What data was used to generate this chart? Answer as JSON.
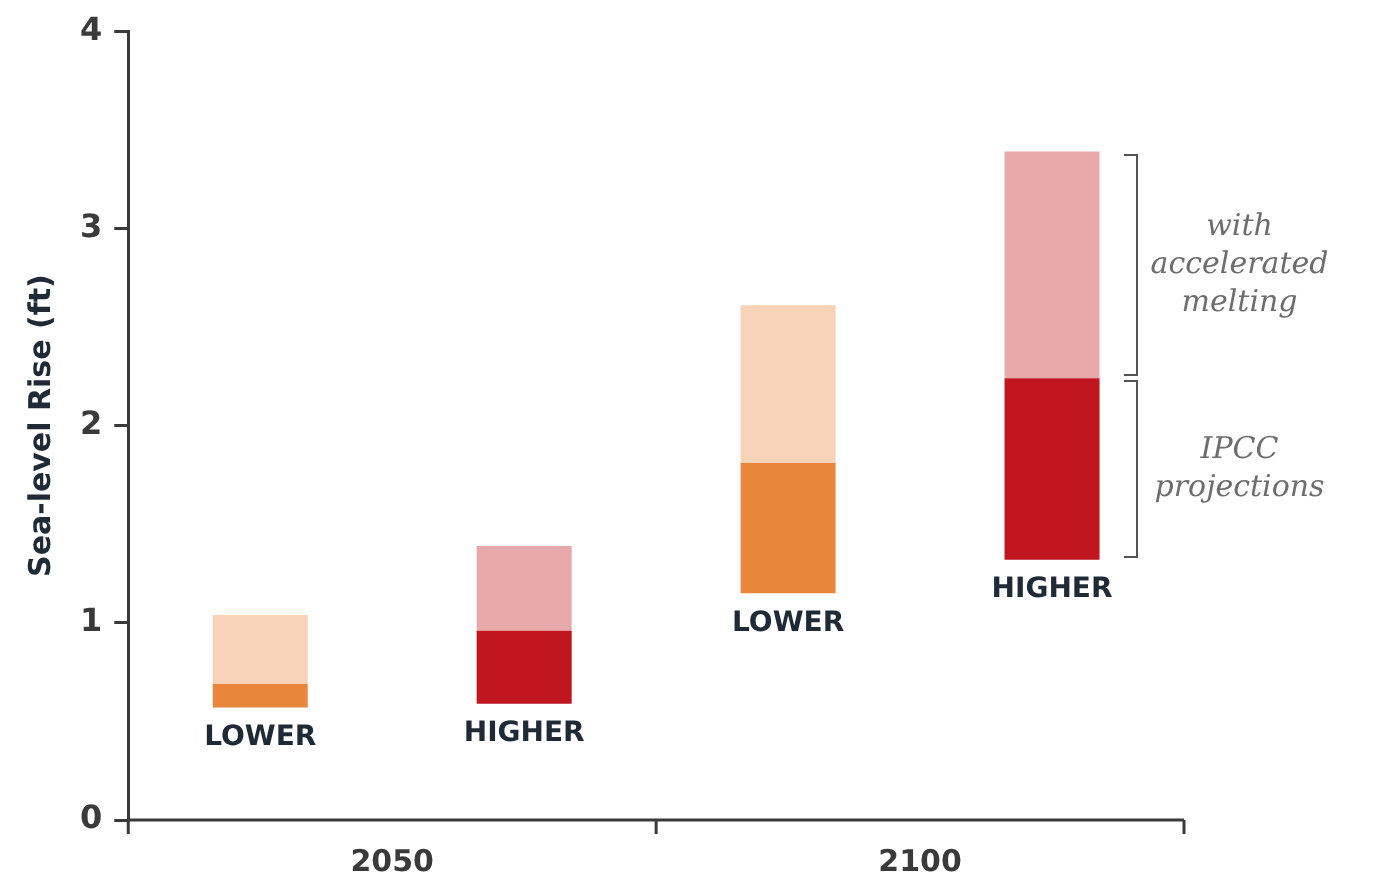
{
  "chart_data": {
    "type": "bar",
    "ylabel": "Sea-level Rise (ft)",
    "categories": [
      "LOWER",
      "HIGHER",
      "LOWER",
      "HIGHER"
    ],
    "series": [
      {
        "name": "IPCC projections",
        "colors": [
          "#e8873c",
          "#c0161f",
          "#e8873c",
          "#c0161f"
        ],
        "base": [
          0.57,
          0.59,
          1.15,
          1.32
        ],
        "values": [
          0.12,
          0.37,
          0.66,
          0.92
        ]
      },
      {
        "name": "with accelerated melting",
        "colors": [
          "#f8d3b8",
          "#e7a9aa",
          "#f8d3b8",
          "#e7a9aa"
        ],
        "base": [
          0.69,
          0.96,
          1.81,
          2.24
        ],
        "values": [
          0.35,
          0.43,
          0.8,
          1.15
        ]
      }
    ],
    "annotations": [
      "2050",
      "2100"
    ],
    "ylim": [
      0,
      4
    ],
    "yticks": [
      0,
      1,
      2,
      3,
      4
    ],
    "grid": false,
    "legend": false
  }
}
